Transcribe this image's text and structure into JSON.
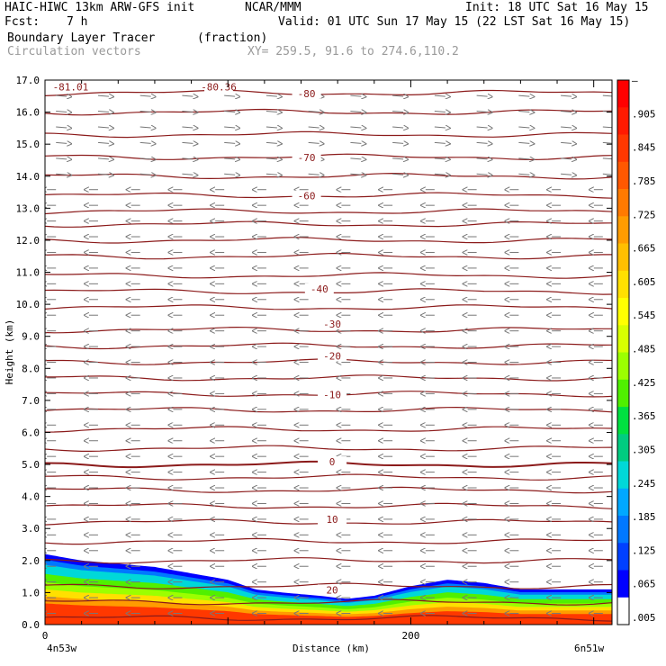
{
  "header": {
    "title_left": "HAIC-HIWC 13km ARW-GFS init",
    "org": "NCAR/MMM",
    "init": "Init: 18 UTC Sat 16 May 15",
    "fcst_label": "Fcst:",
    "fcst_value": "7 h",
    "valid": "Valid: 01 UTC Sun 17 May 15 (22 LST Sat 16 May 15)",
    "field1_name": "Boundary Layer Tracer",
    "field1_units": "(fraction)",
    "field2_name": "Circulation vectors",
    "xy": "XY= 259.5, 91.6 to 274.6,110.2"
  },
  "chart_data": {
    "type": "heatmap",
    "ylabel": "Height (km)",
    "xlabel": "Distance (km)",
    "x_endpoint_left": "4n53w",
    "x_endpoint_right": "6n51w",
    "xlim": [
      0,
      310
    ],
    "ylim": [
      0,
      17
    ],
    "x_ticks": [
      0,
      200
    ],
    "y_ticks": [
      "0.0",
      "1.0",
      "2.0",
      "3.0",
      "4.0",
      "5.0",
      "6.0",
      "7.0",
      "8.0",
      "9.0",
      "10.0",
      "11.0",
      "12.0",
      "13.0",
      "14.0",
      "15.0",
      "16.0",
      "17.0"
    ],
    "colorbar_labels": [
      "–",
      ".905",
      ".845",
      ".785",
      ".725",
      ".665",
      ".605",
      ".545",
      ".485",
      ".425",
      ".365",
      ".305",
      ".245",
      ".185",
      ".125",
      ".065",
      ".005"
    ],
    "colorbar_colors": [
      "#ff0000",
      "#ff1a00",
      "#ff3800",
      "#ff5800",
      "#ff7a00",
      "#ff9c00",
      "#ffbf00",
      "#ffe000",
      "#ffff00",
      "#d8ff00",
      "#9cff00",
      "#50f000",
      "#00e040",
      "#00cc80",
      "#00d8d8",
      "#00a8ff",
      "#0078ff",
      "#0040ff",
      "#0000ff",
      "#ffffff"
    ],
    "isotherm_labels": [
      {
        "text": "-81.01",
        "x": 14,
        "y": 16.7
      },
      {
        "text": "-80.36",
        "x": 95,
        "y": 16.7
      },
      {
        "text": "-80",
        "x": 143,
        "y": 16.5
      },
      {
        "text": "-70",
        "x": 143,
        "y": 14.5
      },
      {
        "text": "-60",
        "x": 143,
        "y": 13.3
      },
      {
        "text": "-40",
        "x": 150,
        "y": 10.4
      },
      {
        "text": "-30",
        "x": 157,
        "y": 9.3
      },
      {
        "text": "-20",
        "x": 157,
        "y": 8.3
      },
      {
        "text": "-10",
        "x": 157,
        "y": 7.1
      },
      {
        "text": "0",
        "x": 157,
        "y": 5.0
      },
      {
        "text": "10",
        "x": 157,
        "y": 3.2
      },
      {
        "text": "20",
        "x": 157,
        "y": 1.0
      }
    ],
    "isotherm_heights": [
      0.2,
      0.7,
      1.2,
      2.0,
      2.6,
      3.2,
      3.7,
      4.2,
      4.6,
      5.0,
      5.5,
      6.1,
      6.7,
      7.2,
      7.7,
      8.2,
      8.7,
      9.2,
      9.9,
      10.4,
      10.9,
      11.5,
      12.0,
      12.5,
      12.9,
      13.4,
      14.0,
      14.6,
      15.3,
      16.0,
      16.6
    ],
    "tracer_top_km": [
      [
        0,
        2.2
      ],
      [
        20,
        2.0
      ],
      [
        40,
        1.9
      ],
      [
        60,
        1.8
      ],
      [
        80,
        1.6
      ],
      [
        100,
        1.4
      ],
      [
        115,
        1.1
      ],
      [
        130,
        1.0
      ],
      [
        150,
        0.9
      ],
      [
        165,
        0.8
      ],
      [
        180,
        0.9
      ],
      [
        200,
        1.2
      ],
      [
        220,
        1.4
      ],
      [
        240,
        1.3
      ],
      [
        260,
        1.1
      ],
      [
        280,
        1.1
      ],
      [
        300,
        1.1
      ],
      [
        310,
        1.1
      ]
    ]
  }
}
